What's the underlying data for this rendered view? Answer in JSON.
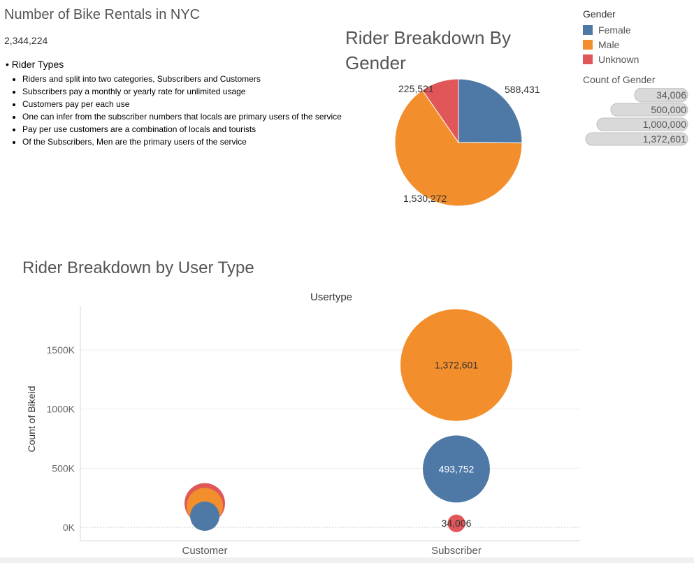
{
  "header": {
    "title": "Number of Bike Rentals in NYC",
    "total": "2,344,224"
  },
  "notes": {
    "heading": "Rider Types",
    "items": [
      "Riders and split into two categories, Subscribers and Customers",
      "Subscribers pay a monthly or yearly rate for unlimited usage",
      "Customers pay per each use",
      "One can infer from the subscriber numbers that locals are primary users of the service",
      "Pay per use customers are a combination of locals and tourists",
      "Of the Subscribers, Men are the primary users of the service"
    ]
  },
  "legend": {
    "gender_title": "Gender",
    "size_title": "Count of Gender",
    "size_values": [
      "34,006",
      "500,000",
      "1,000,000",
      "1,372,601"
    ]
  },
  "colors": {
    "Female": "#4e79a7",
    "Male": "#f28e2b",
    "Unknown": "#e15759"
  },
  "chart_data": [
    {
      "type": "pie",
      "title": "Rider Breakdown By Gender",
      "categories": [
        "Female",
        "Male",
        "Unknown"
      ],
      "values": [
        588431,
        1530272,
        225521
      ],
      "labels": [
        "588,431",
        "1,530,272",
        "225,521"
      ]
    },
    {
      "type": "scatter",
      "title": "Rider Breakdown by User Type",
      "header": "Usertype",
      "xlabel": "",
      "ylabel": "Count of Bikeid",
      "categories": [
        "Customer",
        "Subscriber"
      ],
      "ylim": [
        0,
        1900000
      ],
      "yticks": [
        0,
        500000,
        1000000,
        1500000
      ],
      "ytick_labels": [
        "0K",
        "500K",
        "1000K",
        "1500K"
      ],
      "grid": true,
      "series": [
        {
          "name": "Female",
          "values": [
            94500,
            493752
          ],
          "labels": [
            "",
            "493,752"
          ]
        },
        {
          "name": "Male",
          "values": [
            180000,
            1372601
          ],
          "labels": [
            "",
            "1,372,601"
          ]
        },
        {
          "name": "Unknown",
          "values": [
            203000,
            34006
          ],
          "labels": [
            "",
            "34,006"
          ]
        }
      ]
    }
  ]
}
